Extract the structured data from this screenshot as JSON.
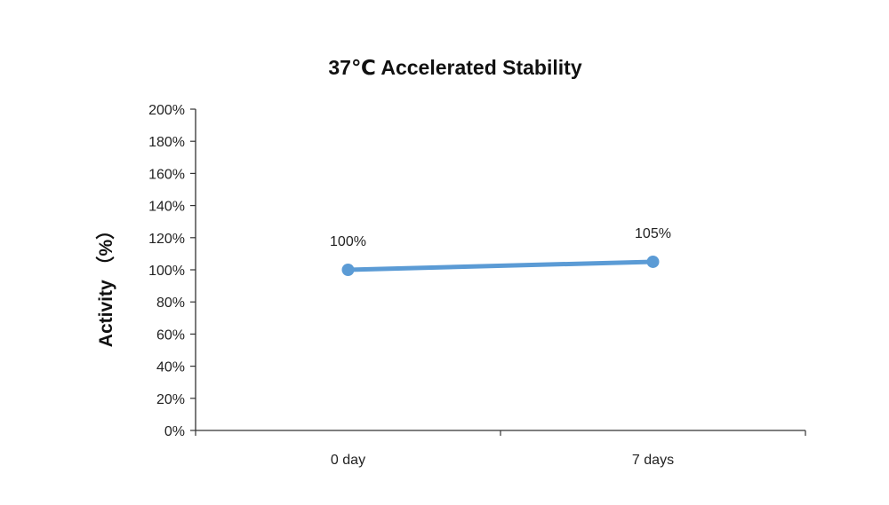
{
  "chart_data": {
    "type": "line",
    "title": "37℃ Accelerated Stability",
    "xlabel": "",
    "ylabel": "Activity （%）",
    "categories": [
      "0 day",
      "7 days"
    ],
    "series": [
      {
        "name": "Activity",
        "values": [
          100,
          105
        ],
        "color": "#5b9bd5",
        "data_labels": [
          "100%",
          "105%"
        ]
      }
    ],
    "ylim": [
      0,
      200
    ],
    "yticks": [
      0,
      20,
      40,
      60,
      80,
      100,
      120,
      140,
      160,
      180,
      200
    ],
    "ytick_labels": [
      "0%",
      "20%",
      "40%",
      "60%",
      "80%",
      "100%",
      "120%",
      "140%",
      "160%",
      "180%",
      "200%"
    ],
    "grid": false,
    "legend": "none"
  }
}
